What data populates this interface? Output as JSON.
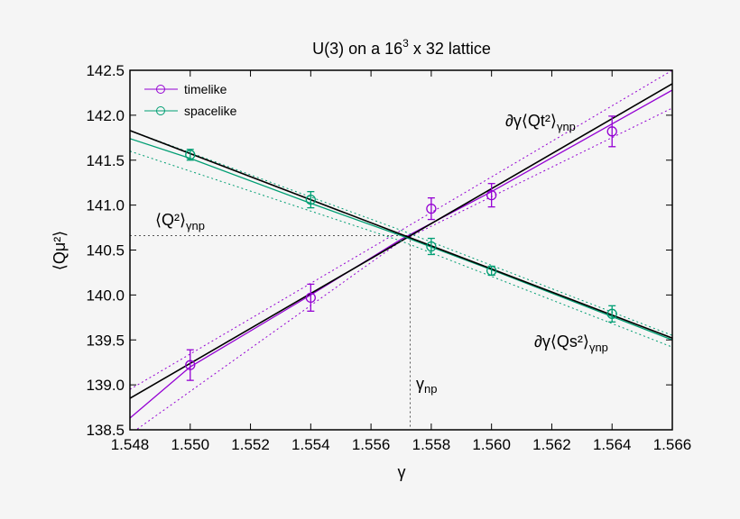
{
  "chart_data": {
    "type": "scatter",
    "title": "U(3) on a 16³ x 32 lattice",
    "title_main": "U(3) on a 16",
    "title_sup": "3",
    "title_rest": " x 32 lattice",
    "xlabel": "γ",
    "ylabel": "⟨Qμ²⟩",
    "xlim": [
      1.548,
      1.566
    ],
    "ylim": [
      138.5,
      142.5
    ],
    "xticks": [
      "1.548",
      "1.550",
      "1.552",
      "1.554",
      "1.556",
      "1.558",
      "1.560",
      "1.562",
      "1.564",
      "1.566"
    ],
    "yticks": [
      "138.5",
      "139.0",
      "139.5",
      "140.0",
      "140.5",
      "141.0",
      "141.5",
      "142.0",
      "142.5"
    ],
    "grid": false,
    "legend_position": "top-left",
    "series": [
      {
        "name": "timelike",
        "color": "#9400d3",
        "x": [
          1.55,
          1.554,
          1.558,
          1.56,
          1.564
        ],
        "y": [
          139.22,
          139.97,
          140.96,
          141.11,
          141.82
        ],
        "yerr": [
          0.17,
          0.15,
          0.12,
          0.13,
          0.17
        ],
        "fit": {
          "x": [
            1.548,
            1.55,
            1.554,
            1.557,
            1.56,
            1.566
          ],
          "y": [
            138.63,
            139.2,
            140.0,
            140.62,
            141.15,
            142.28
          ]
        },
        "band_upper": {
          "x": [
            1.548,
            1.557,
            1.566
          ],
          "y": [
            138.95,
            140.72,
            142.5
          ]
        },
        "band_lower": {
          "x": [
            1.548,
            1.557,
            1.566
          ],
          "y": [
            138.45,
            140.6,
            142.08
          ]
        },
        "tangent": {
          "x": [
            1.548,
            1.566
          ],
          "y": [
            138.85,
            142.35
          ]
        }
      },
      {
        "name": "spacelike",
        "color": "#009e73",
        "x": [
          1.55,
          1.554,
          1.558,
          1.56,
          1.564
        ],
        "y": [
          141.56,
          141.06,
          140.54,
          140.27,
          139.79
        ],
        "yerr": [
          0.06,
          0.09,
          0.09,
          0.05,
          0.09
        ],
        "fit": {
          "x": [
            1.548,
            1.55,
            1.554,
            1.557,
            1.56,
            1.566
          ],
          "y": [
            141.74,
            141.52,
            141.02,
            140.66,
            140.28,
            139.5
          ]
        },
        "band_upper": {
          "x": [
            1.548,
            1.557,
            1.566
          ],
          "y": [
            141.83,
            140.72,
            139.55
          ]
        },
        "band_lower": {
          "x": [
            1.548,
            1.557,
            1.566
          ],
          "y": [
            141.6,
            140.6,
            139.42
          ]
        },
        "tangent": {
          "x": [
            1.548,
            1.566
          ],
          "y": [
            141.83,
            139.52
          ]
        }
      }
    ],
    "crossing": {
      "x": 1.5573,
      "y": 140.66
    },
    "annotations": {
      "q2": "⟨Q²⟩",
      "q2_sub": "γnp",
      "dt": "∂γ⟨Qt²⟩",
      "dt_sub": "γnp",
      "ds": "∂γ⟨Qs²⟩",
      "ds_sub": "γnp",
      "gnp": "γ",
      "gnp_sub": "np"
    }
  }
}
